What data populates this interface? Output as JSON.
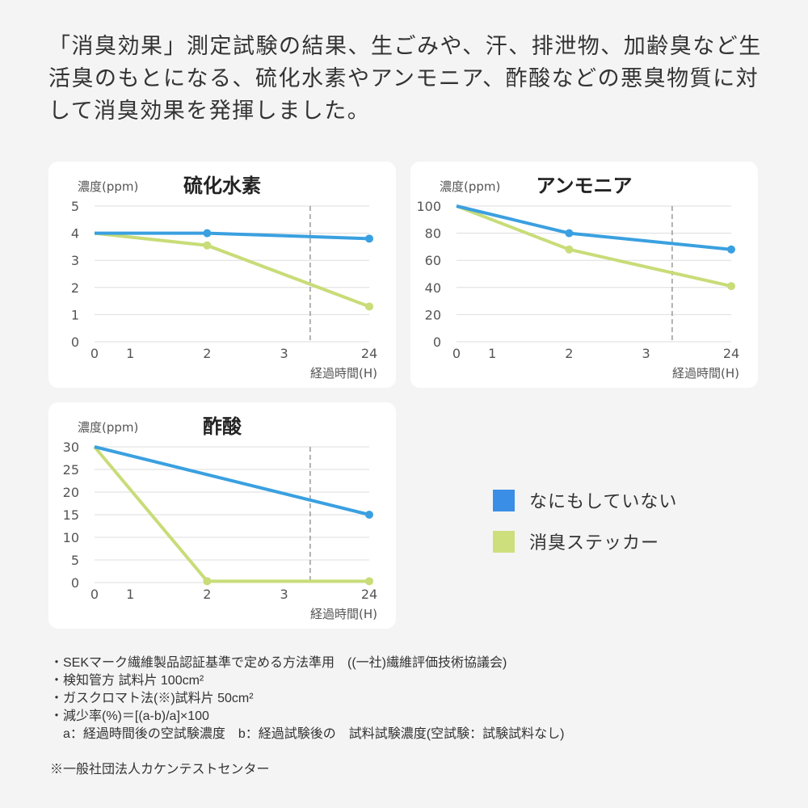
{
  "intro": "「消臭効果」測定試験の結果、生ごみや、汗、排泄物、加齢臭など生活臭のもとになる、硫化水素やアンモニア、酢酸などの悪臭物質に対して消臭効果を発揮しました。",
  "colors": {
    "none": "#3aa0e0",
    "sticker": "#c8dc78",
    "legend_none": "#3a8ee6",
    "legend_sticker": "#cddf7c"
  },
  "legend": {
    "none": "なにもしていない",
    "sticker": "消臭ステッカー"
  },
  "chart_data": [
    {
      "type": "line",
      "title": "硫化水素",
      "ylabel": "濃度(ppm)",
      "xlabel": "経過時間(H)",
      "x_ticks": [
        "0",
        "1",
        "2",
        "3",
        "24"
      ],
      "y_ticks": [
        "0",
        "1",
        "2",
        "3",
        "4",
        "5"
      ],
      "ylim": [
        0,
        5
      ],
      "grid": true,
      "series": [
        {
          "name": "なにもしていない",
          "x": [
            "0",
            "2",
            "24"
          ],
          "values": [
            4.0,
            4.0,
            3.8
          ],
          "markers": [
            false,
            true,
            true
          ]
        },
        {
          "name": "消臭ステッカー",
          "x": [
            "0",
            "2",
            "24"
          ],
          "values": [
            4.0,
            3.55,
            1.3
          ],
          "markers": [
            false,
            true,
            true
          ]
        }
      ]
    },
    {
      "type": "line",
      "title": "アンモニア",
      "ylabel": "濃度(ppm)",
      "xlabel": "経過時間(H)",
      "x_ticks": [
        "0",
        "1",
        "2",
        "3",
        "24"
      ],
      "y_ticks": [
        "0",
        "20",
        "40",
        "60",
        "80",
        "100"
      ],
      "ylim": [
        0,
        100
      ],
      "grid": true,
      "series": [
        {
          "name": "なにもしていない",
          "x": [
            "0",
            "2",
            "24"
          ],
          "values": [
            100,
            80,
            68
          ],
          "markers": [
            false,
            true,
            true
          ]
        },
        {
          "name": "消臭ステッカー",
          "x": [
            "0",
            "2",
            "24"
          ],
          "values": [
            100,
            68,
            41
          ],
          "markers": [
            false,
            true,
            true
          ]
        }
      ]
    },
    {
      "type": "line",
      "title": "酢酸",
      "ylabel": "濃度(ppm)",
      "xlabel": "経過時間(H)",
      "x_ticks": [
        "0",
        "1",
        "2",
        "3",
        "24"
      ],
      "y_ticks": [
        "0",
        "5",
        "10",
        "15",
        "20",
        "25",
        "30"
      ],
      "ylim": [
        0,
        30
      ],
      "grid": true,
      "series": [
        {
          "name": "なにもしていない",
          "x": [
            "0",
            "24"
          ],
          "values": [
            30,
            15
          ],
          "markers": [
            false,
            true
          ]
        },
        {
          "name": "消臭ステッカー",
          "x": [
            "0",
            "2",
            "24"
          ],
          "values": [
            30,
            0.3,
            0.3
          ],
          "markers": [
            false,
            true,
            true
          ]
        }
      ]
    }
  ],
  "notes": [
    "・SEKマーク繊維製品認証基準で定める方法準用　((一社)繊維評価技術協議会)",
    "・検知管方 試料片 100cm²",
    "・ガスクロマト法(※)試料片 50cm²",
    "・減少率(%)＝[(a-b)/a]×100",
    "　a：経過時間後の空試験濃度　b：経過試験後の　試料試験濃度(空試験：試験試料なし)",
    "",
    "※一般社団法人カケンテストセンター"
  ]
}
